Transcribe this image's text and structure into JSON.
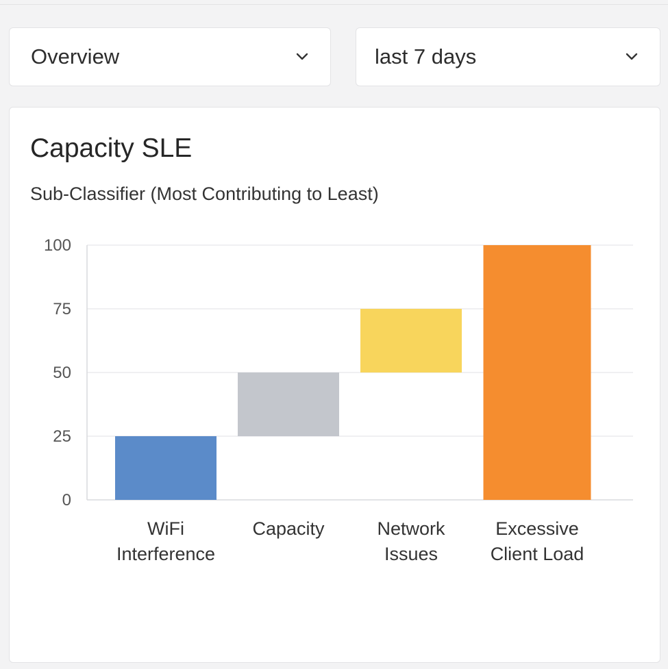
{
  "filters": {
    "view": {
      "value": "Overview",
      "icon": "chevron-down-icon"
    },
    "range": {
      "value": "last 7 days",
      "icon": "chevron-down-icon"
    }
  },
  "card": {
    "title": "Capacity SLE",
    "subtitle": "Sub-Classifier (Most Contributing to Least)"
  },
  "chart_data": {
    "type": "bar",
    "subtype": "waterfall",
    "categories": [
      [
        "WiFi",
        "Interference"
      ],
      [
        "Capacity"
      ],
      [
        "Network",
        "Issues"
      ],
      [
        "Excessive",
        "Client Load"
      ]
    ],
    "ranges": [
      [
        0,
        25
      ],
      [
        25,
        50
      ],
      [
        50,
        75
      ],
      [
        0,
        100
      ]
    ],
    "colors": [
      "#5b8bc9",
      "#c3c6cc",
      "#f8d55c",
      "#f58d2f"
    ],
    "yticks": [
      0,
      25,
      50,
      75,
      100
    ],
    "ylim": [
      0,
      100
    ],
    "grid": true,
    "legend": "none"
  }
}
